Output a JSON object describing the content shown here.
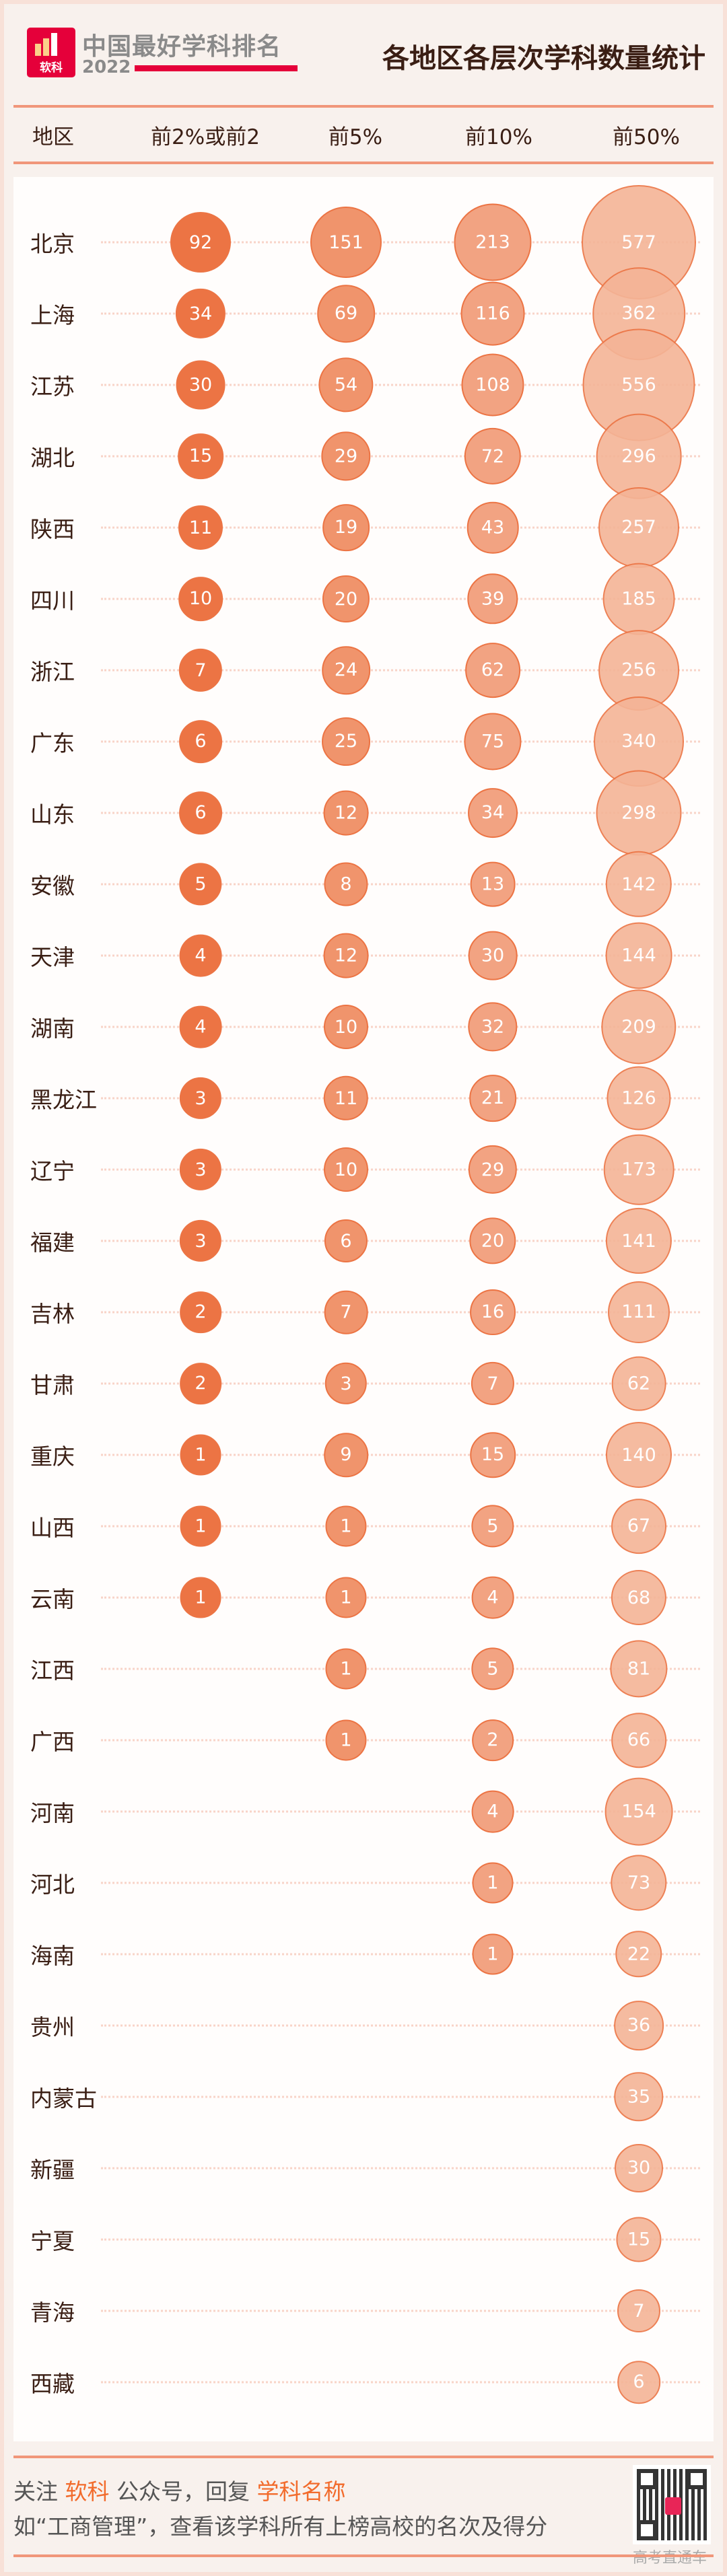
{
  "header": {
    "brand": "中国最好学科排名",
    "year": "2022",
    "logo_text": "软科",
    "title": "各地区各层次学科数量统计"
  },
  "colors": {
    "col1": "#ec7444",
    "col2": "#f0946c",
    "col3": "#f2a382",
    "col4": "#f4b497",
    "stroke": "#ec7444",
    "line": "#f0967a"
  },
  "chart_data": {
    "type": "bubble-table",
    "columns": [
      "地区",
      "前2%或前2",
      "前5%",
      "前10%",
      "前50%"
    ],
    "rows": [
      {
        "region": "北京",
        "values": [
          92,
          151,
          213,
          577
        ]
      },
      {
        "region": "上海",
        "values": [
          34,
          69,
          116,
          362
        ]
      },
      {
        "region": "江苏",
        "values": [
          30,
          54,
          108,
          556
        ]
      },
      {
        "region": "湖北",
        "values": [
          15,
          29,
          72,
          296
        ]
      },
      {
        "region": "陕西",
        "values": [
          11,
          19,
          43,
          257
        ]
      },
      {
        "region": "四川",
        "values": [
          10,
          20,
          39,
          185
        ]
      },
      {
        "region": "浙江",
        "values": [
          7,
          24,
          62,
          256
        ]
      },
      {
        "region": "广东",
        "values": [
          6,
          25,
          75,
          340
        ]
      },
      {
        "region": "山东",
        "values": [
          6,
          12,
          34,
          298
        ]
      },
      {
        "region": "安徽",
        "values": [
          5,
          8,
          13,
          142
        ]
      },
      {
        "region": "天津",
        "values": [
          4,
          12,
          30,
          144
        ]
      },
      {
        "region": "湖南",
        "values": [
          4,
          10,
          32,
          209
        ]
      },
      {
        "region": "黑龙江",
        "values": [
          3,
          11,
          21,
          126
        ]
      },
      {
        "region": "辽宁",
        "values": [
          3,
          10,
          29,
          173
        ]
      },
      {
        "region": "福建",
        "values": [
          3,
          6,
          20,
          141
        ]
      },
      {
        "region": "吉林",
        "values": [
          2,
          7,
          16,
          111
        ]
      },
      {
        "region": "甘肃",
        "values": [
          2,
          3,
          7,
          62
        ]
      },
      {
        "region": "重庆",
        "values": [
          1,
          9,
          15,
          140
        ]
      },
      {
        "region": "山西",
        "values": [
          1,
          1,
          5,
          67
        ]
      },
      {
        "region": "云南",
        "values": [
          1,
          1,
          4,
          68
        ]
      },
      {
        "region": "江西",
        "values": [
          null,
          1,
          5,
          81
        ]
      },
      {
        "region": "广西",
        "values": [
          null,
          1,
          2,
          66
        ]
      },
      {
        "region": "河南",
        "values": [
          null,
          null,
          4,
          154
        ]
      },
      {
        "region": "河北",
        "values": [
          null,
          null,
          1,
          73
        ]
      },
      {
        "region": "海南",
        "values": [
          null,
          null,
          1,
          22
        ]
      },
      {
        "region": "贵州",
        "values": [
          null,
          null,
          null,
          36
        ]
      },
      {
        "region": "内蒙古",
        "values": [
          null,
          null,
          null,
          35
        ]
      },
      {
        "region": "新疆",
        "values": [
          null,
          null,
          null,
          30
        ]
      },
      {
        "region": "宁夏",
        "values": [
          null,
          null,
          null,
          15
        ]
      },
      {
        "region": "青海",
        "values": [
          null,
          null,
          null,
          7
        ]
      },
      {
        "region": "西藏",
        "values": [
          null,
          null,
          null,
          6
        ]
      }
    ]
  },
  "footer": {
    "l1a": "关注 ",
    "l1b": "软科",
    "l1c": " 公众号，回复 ",
    "l1d": "学科名称",
    "line2": "如“工商管理”，查看该学科所有上榜高校的名次及得分",
    "qr_caption": "高考直通车"
  }
}
